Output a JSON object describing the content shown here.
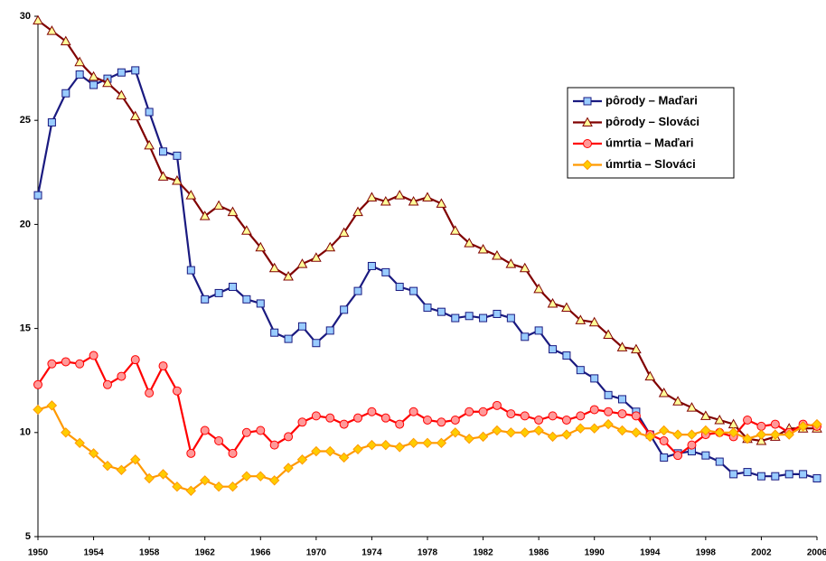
{
  "chart_data": {
    "type": "line",
    "x": [
      1950,
      1951,
      1952,
      1953,
      1954,
      1955,
      1956,
      1957,
      1958,
      1959,
      1960,
      1961,
      1962,
      1963,
      1964,
      1965,
      1966,
      1967,
      1968,
      1969,
      1970,
      1971,
      1972,
      1973,
      1974,
      1975,
      1976,
      1977,
      1978,
      1979,
      1980,
      1981,
      1982,
      1983,
      1984,
      1985,
      1986,
      1987,
      1988,
      1989,
      1990,
      1991,
      1992,
      1993,
      1994,
      1995,
      1996,
      1997,
      1998,
      1999,
      2000,
      2001,
      2002,
      2003,
      2004,
      2005,
      2006
    ],
    "xlim": [
      1950,
      2006
    ],
    "xticks": [
      1950,
      1954,
      1958,
      1962,
      1966,
      1970,
      1974,
      1978,
      1982,
      1986,
      1990,
      1994,
      1998,
      2002,
      2006
    ],
    "ylim": [
      5,
      30
    ],
    "yticks": [
      5,
      10,
      15,
      20,
      25,
      30
    ],
    "grid": false,
    "legend": "upper right",
    "series": [
      {
        "name": "pôrody – Maďari",
        "color": "#1a1a80",
        "marker_color": "#99ccff",
        "marker": "square",
        "values": [
          21.4,
          24.9,
          26.3,
          27.2,
          26.7,
          27.0,
          27.3,
          27.4,
          25.4,
          23.5,
          23.3,
          17.8,
          16.4,
          16.7,
          17.0,
          16.4,
          16.2,
          14.8,
          14.5,
          15.1,
          14.3,
          14.9,
          15.9,
          16.8,
          18.0,
          17.7,
          17.0,
          16.8,
          16.0,
          15.8,
          15.5,
          15.6,
          15.5,
          15.7,
          15.5,
          14.6,
          14.9,
          14.0,
          13.7,
          13.0,
          12.6,
          11.8,
          11.6,
          11.0,
          9.9,
          8.8,
          9.0,
          9.1,
          8.9,
          8.6,
          8.0,
          8.1,
          7.9,
          7.9,
          8.0,
          8.0,
          7.8
        ]
      },
      {
        "name": "pôrody – Slováci",
        "color": "#800000",
        "marker_color": "#ffff99",
        "marker": "triangle",
        "values": [
          29.8,
          29.3,
          28.8,
          27.8,
          27.1,
          26.8,
          26.2,
          25.2,
          23.8,
          22.3,
          22.1,
          21.4,
          20.4,
          20.9,
          20.6,
          19.7,
          18.9,
          17.9,
          17.5,
          18.1,
          18.4,
          18.9,
          19.6,
          20.6,
          21.3,
          21.1,
          21.4,
          21.1,
          21.3,
          21.0,
          19.7,
          19.1,
          18.8,
          18.5,
          18.1,
          17.9,
          16.9,
          16.2,
          16.0,
          15.4,
          15.3,
          14.7,
          14.1,
          14.0,
          12.7,
          11.9,
          11.5,
          11.2,
          10.8,
          10.6,
          10.4,
          9.7,
          9.6,
          9.8,
          10.2,
          10.2,
          10.2
        ]
      },
      {
        "name": "úmrtia – Maďari",
        "color": "#ff0000",
        "marker_color": "#ff9999",
        "marker": "circle",
        "values": [
          12.3,
          13.3,
          13.4,
          13.3,
          13.7,
          12.3,
          12.7,
          13.5,
          11.9,
          13.2,
          12.0,
          9.0,
          10.1,
          9.6,
          9.0,
          10.0,
          10.1,
          9.4,
          9.8,
          10.5,
          10.8,
          10.7,
          10.4,
          10.7,
          11.0,
          10.7,
          10.4,
          11.0,
          10.6,
          10.5,
          10.6,
          11.0,
          11.0,
          11.3,
          10.9,
          10.8,
          10.6,
          10.8,
          10.6,
          10.8,
          11.1,
          11.0,
          10.9,
          10.8,
          9.9,
          9.6,
          8.9,
          9.4,
          9.9,
          10.0,
          9.8,
          10.6,
          10.3,
          10.4,
          10.0,
          10.4,
          10.3
        ]
      },
      {
        "name": "úmrtia – Slováci",
        "color": "#ff9900",
        "marker_color": "#ffcc00",
        "marker": "diamond",
        "values": [
          11.1,
          11.3,
          10.0,
          9.5,
          9.0,
          8.4,
          8.2,
          8.7,
          7.8,
          8.0,
          7.4,
          7.2,
          7.7,
          7.4,
          7.4,
          7.9,
          7.9,
          7.7,
          8.3,
          8.7,
          9.1,
          9.1,
          8.8,
          9.2,
          9.4,
          9.4,
          9.3,
          9.5,
          9.5,
          9.5,
          10.0,
          9.7,
          9.8,
          10.1,
          10.0,
          10.0,
          10.1,
          9.8,
          9.9,
          10.2,
          10.2,
          10.4,
          10.1,
          10.0,
          9.8,
          10.1,
          9.9,
          9.9,
          10.1,
          10.0,
          10.0,
          9.7,
          9.9,
          9.9,
          9.9,
          10.3,
          10.4
        ]
      }
    ]
  }
}
